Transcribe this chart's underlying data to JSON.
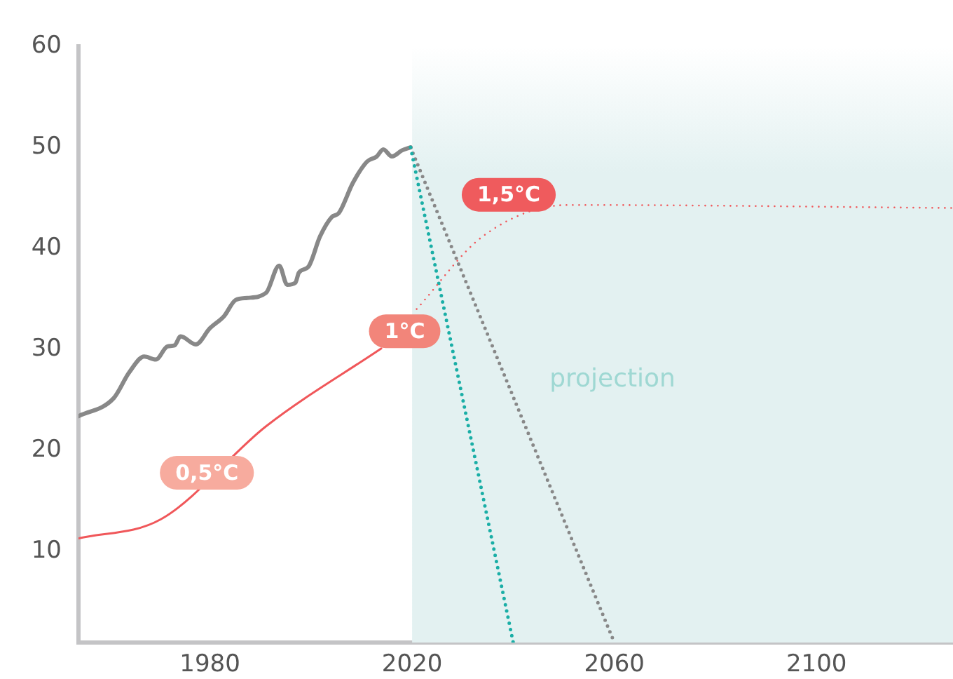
{
  "chart_data": {
    "type": "line",
    "xlim": [
      1954,
      2127
    ],
    "xticks": [
      1980,
      2020,
      2060,
      2100
    ],
    "ylim": [
      1,
      60
    ],
    "yticks": [
      10,
      20,
      30,
      40,
      50,
      60
    ],
    "grid": false,
    "legend": false,
    "marker": "none",
    "series": [
      {
        "color": "#888888",
        "line_style": "solid",
        "x": [
          1954,
          1961,
          1964,
          1967,
          1969.3,
          1971.6,
          1973,
          1974.2,
          1977.2,
          1980,
          1982.8,
          1985.1,
          1987.4,
          1991.1,
          1993.7,
          1995.3,
          1996.9,
          1997.6,
          1999.5,
          2001.8,
          2004.1,
          2005.5,
          2008.3,
          2011.1,
          2013,
          2014.3,
          2016,
          2018,
          2019.7
        ],
        "values": [
          23.4,
          25.2,
          27.7,
          29.3,
          29.0,
          30.3,
          30.4,
          31.3,
          30.5,
          32.1,
          33.3,
          34.9,
          35.1,
          35.6,
          38.3,
          36.4,
          36.6,
          37.6,
          38.2,
          41.2,
          43.1,
          43.5,
          46.5,
          48.6,
          49.1,
          49.8,
          49.1,
          49.7,
          50.0
        ]
      },
      {
        "color": "#888888",
        "line_style": "dotted",
        "x": [
          2019.7,
          2060
        ],
        "values": [
          50.0,
          1
        ]
      },
      {
        "color": "#1aaea6",
        "line_style": "dotted",
        "x": [
          2019.7,
          2040
        ],
        "values": [
          50.0,
          1
        ]
      },
      {
        "color": "#f0575a",
        "line_style": "solid",
        "x": [
          1954,
          1970.3,
          1991.1,
          2013.9
        ],
        "values": [
          11.3,
          13.2,
          22.4,
          30.1
        ]
      },
      {
        "color": "#f0575a",
        "line_style": "dotted",
        "x": [
          2020.9,
          2034,
          2051,
          2127
        ],
        "values": [
          34.0,
          41.2,
          44.3,
          44.0
        ]
      }
    ],
    "bands": [
      {
        "axis": "x",
        "from": 2020,
        "to": 2127,
        "label": "projection",
        "color": "#e3f1f1"
      }
    ],
    "annotations": [
      {
        "text": "0,5°C",
        "x": 1979.4,
        "y": 17.8
      },
      "1°C",
      "1,5°C"
    ]
  }
}
